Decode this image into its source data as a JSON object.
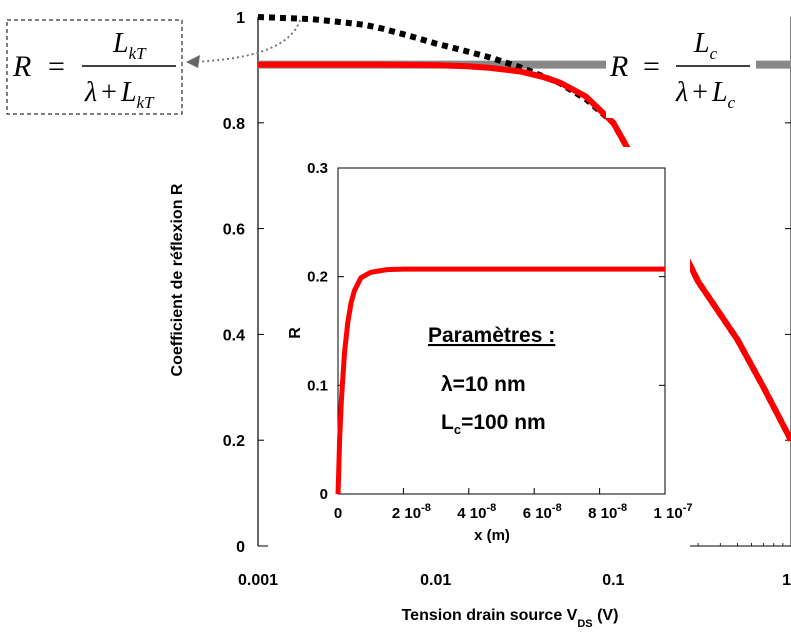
{
  "chart_data": [
    {
      "type": "line",
      "xscale": "log",
      "xlim": [
        0.001,
        1
      ],
      "ylim": [
        0,
        1
      ],
      "xticks": [
        0.001,
        0.01,
        0.1,
        1
      ],
      "xtick_labels": [
        "0.001",
        "0.01",
        "0.1",
        "1"
      ],
      "yticks": [
        0,
        0.2,
        0.4,
        0.6,
        0.8,
        1
      ],
      "ytick_labels": [
        "0",
        "0.2",
        "0.4",
        "0.6",
        "0.8",
        "1"
      ],
      "xlabel_main": "Tension drain source V",
      "xlabel_sub": "DS",
      "xlabel_unit": " (V)",
      "ylabel": "Coefficient de réflexion R",
      "grid": false,
      "series": [
        {
          "style": "dotted",
          "color": "#000000",
          "x": [
            0.001,
            0.002,
            0.003,
            0.004,
            0.005,
            0.007,
            0.01,
            0.015,
            0.02,
            0.03,
            0.05,
            0.07,
            0.1,
            0.2,
            0.3,
            0.5,
            0.7,
            1
          ],
          "y": [
            1,
            0.996,
            0.99,
            0.985,
            0.978,
            0.965,
            0.95,
            0.935,
            0.924,
            0.905,
            0.875,
            0.845,
            0.8,
            0.62,
            0.5,
            0.39,
            0.3,
            0.2
          ]
        },
        {
          "style": "solid",
          "color": "#ff0000",
          "x": [
            0.001,
            0.002,
            0.005,
            0.01,
            0.015,
            0.02,
            0.03,
            0.04,
            0.05,
            0.07,
            0.1,
            0.2,
            0.3,
            0.5,
            0.7,
            1
          ],
          "y": [
            0.91,
            0.91,
            0.91,
            0.909,
            0.907,
            0.904,
            0.897,
            0.887,
            0.876,
            0.85,
            0.8,
            0.62,
            0.5,
            0.39,
            0.3,
            0.2
          ]
        },
        {
          "style": "solid",
          "color": "#888888",
          "x": [
            0.001,
            1
          ],
          "y": [
            0.91,
            0.91
          ]
        }
      ],
      "annotations": {
        "left_eq": {
          "lhs": "R",
          "eq": "=",
          "num_L": "L",
          "num_sub": "kT",
          "den_lambda": "λ",
          "den_plus": "+",
          "den_L": "L",
          "den_sub": "kT"
        },
        "right_eq": {
          "lhs": "R",
          "eq": "=",
          "num_L": "L",
          "num_sub": "c",
          "den_lambda": "λ",
          "den_plus": "+",
          "den_L": "L",
          "den_sub": "c"
        }
      }
    },
    {
      "type": "line",
      "xlim": [
        0,
        1e-07
      ],
      "ylim": [
        0,
        0.3
      ],
      "xticks": [
        0,
        2e-08,
        4e-08,
        6e-08,
        8e-08,
        1e-07
      ],
      "xtick_labels": [
        {
          "mant": "0",
          "exp": ""
        },
        {
          "mant": "2 10",
          "exp": "-8"
        },
        {
          "mant": "4 10",
          "exp": "-8"
        },
        {
          "mant": "6 10",
          "exp": "-8"
        },
        {
          "mant": "8 10",
          "exp": "-8"
        },
        {
          "mant": "1 10",
          "exp": "-7"
        }
      ],
      "yticks": [
        0,
        0.1,
        0.2,
        0.3
      ],
      "ytick_labels": [
        "0",
        "0.1",
        "0.2",
        "0.3"
      ],
      "xlabel": "x (m)",
      "ylabel": "R",
      "grid": false,
      "series": [
        {
          "style": "solid",
          "color": "#ff0000",
          "x": [
            0,
            2e-10,
            5e-10,
            1e-09,
            2e-09,
            3e-09,
            4e-09,
            5e-09,
            7e-09,
            1e-08,
            1.5e-08,
            2e-08,
            3e-08,
            5e-08,
            7e-08,
            1e-07
          ],
          "y": [
            0,
            0.02,
            0.05,
            0.085,
            0.13,
            0.158,
            0.176,
            0.187,
            0.199,
            0.204,
            0.2065,
            0.207,
            0.207,
            0.207,
            0.207,
            0.207
          ]
        }
      ],
      "annotations": {
        "params_title": "Paramètres :",
        "lambda_text": "λ=10 nm",
        "lc_L": "L",
        "lc_sub": "c",
        "lc_rest": "=100 nm"
      }
    }
  ]
}
